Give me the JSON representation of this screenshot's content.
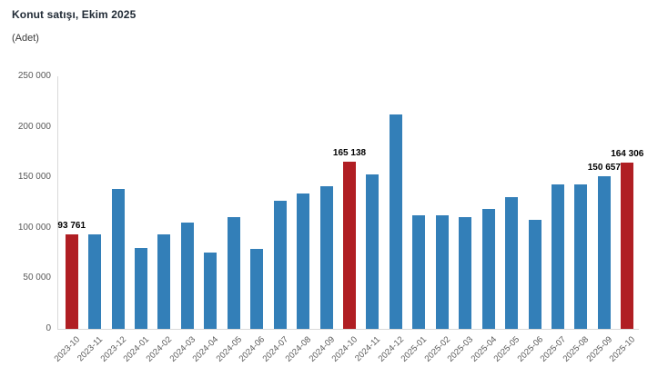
{
  "header": {
    "title": "Konut satışı, Ekim 2025",
    "subtitle": "(Adet)"
  },
  "colors": {
    "bar_blue": "#337fb8",
    "bar_red": "#b01e23",
    "axis_line": "#d9d9d9",
    "tick_text": "#595959",
    "title_text": "#212b36",
    "data_label_text": "#000000"
  },
  "chart_data": {
    "type": "bar",
    "title": "Konut satışı, Ekim 2025",
    "xlabel": "",
    "ylabel": "Adet",
    "ylim": [
      0,
      250000
    ],
    "ytick_step": 50000,
    "ytick_labels": [
      "0",
      "50 000",
      "100 000",
      "150 000",
      "200 000",
      "250 000"
    ],
    "grid": false,
    "legend": "none",
    "highlighted_months": [
      "2023-10",
      "2024-10",
      "2025-10"
    ],
    "bars": [
      {
        "month": "2023-10",
        "value": 93761,
        "highlight": true,
        "label": "93 761"
      },
      {
        "month": "2023-11",
        "value": 93514,
        "highlight": false,
        "label": null
      },
      {
        "month": "2023-12",
        "value": 138577,
        "highlight": false,
        "label": null
      },
      {
        "month": "2024-01",
        "value": 80308,
        "highlight": false,
        "label": null
      },
      {
        "month": "2024-02",
        "value": 93902,
        "highlight": false,
        "label": null
      },
      {
        "month": "2024-03",
        "value": 105476,
        "highlight": false,
        "label": null
      },
      {
        "month": "2024-04",
        "value": 75569,
        "highlight": false,
        "label": null
      },
      {
        "month": "2024-05",
        "value": 110588,
        "highlight": false,
        "label": null
      },
      {
        "month": "2024-06",
        "value": 79313,
        "highlight": false,
        "label": null
      },
      {
        "month": "2024-07",
        "value": 127088,
        "highlight": false,
        "label": null
      },
      {
        "month": "2024-08",
        "value": 134155,
        "highlight": false,
        "label": null
      },
      {
        "month": "2024-09",
        "value": 140919,
        "highlight": false,
        "label": null
      },
      {
        "month": "2024-10",
        "value": 165138,
        "highlight": true,
        "label": "165 138"
      },
      {
        "month": "2024-11",
        "value": 153014,
        "highlight": false,
        "label": null
      },
      {
        "month": "2024-12",
        "value": 212637,
        "highlight": false,
        "label": null
      },
      {
        "month": "2025-01",
        "value": 112173,
        "highlight": false,
        "label": null
      },
      {
        "month": "2025-02",
        "value": 112818,
        "highlight": false,
        "label": null
      },
      {
        "month": "2025-03",
        "value": 110795,
        "highlight": false,
        "label": null
      },
      {
        "month": "2025-04",
        "value": 118359,
        "highlight": false,
        "label": null
      },
      {
        "month": "2025-05",
        "value": 130025,
        "highlight": false,
        "label": null
      },
      {
        "month": "2025-06",
        "value": 107723,
        "highlight": false,
        "label": null
      },
      {
        "month": "2025-07",
        "value": 142858,
        "highlight": false,
        "label": null
      },
      {
        "month": "2025-08",
        "value": 143319,
        "highlight": false,
        "label": null
      },
      {
        "month": "2025-09",
        "value": 150657,
        "highlight": false,
        "label": "150 657"
      },
      {
        "month": "2025-10",
        "value": 164306,
        "highlight": true,
        "label": "164 306"
      }
    ]
  }
}
